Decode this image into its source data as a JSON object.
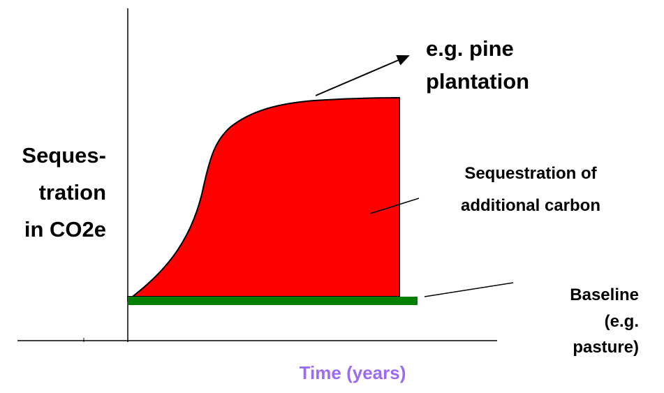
{
  "labels": {
    "curve": [
      "e.g. pine",
      "plantation"
    ],
    "area": [
      "Sequestration of",
      "additional carbon"
    ],
    "y_axis": [
      "Seques-",
      "tration",
      "in CO2e"
    ],
    "baseline": [
      "Baseline",
      "(e.g.",
      "pasture)"
    ],
    "x_axis": "Time (years)"
  }
}
